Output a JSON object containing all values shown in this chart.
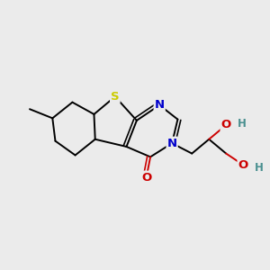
{
  "background_color": "#ebebeb",
  "fig_size": [
    3.0,
    3.0
  ],
  "dpi": 100,
  "atom_colors": {
    "S": "#cccc00",
    "N": "#0000cc",
    "O": "#cc0000",
    "C": "#000000",
    "H": "#4a9090"
  },
  "bond_color": "#000000",
  "bond_width": 1.4,
  "font_size_atoms": 9.5,
  "font_size_H": 8.5
}
